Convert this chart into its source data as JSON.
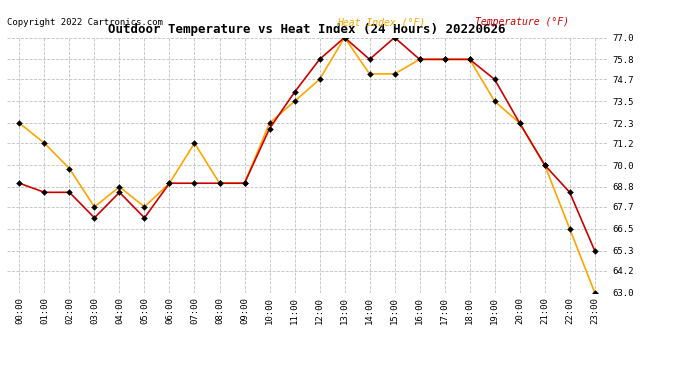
{
  "title": "Outdoor Temperature vs Heat Index (24 Hours) 20220626",
  "copyright": "Copyright 2022 Cartronics.com",
  "hours": [
    "00:00",
    "01:00",
    "02:00",
    "03:00",
    "04:00",
    "05:00",
    "06:00",
    "07:00",
    "08:00",
    "09:00",
    "10:00",
    "11:00",
    "12:00",
    "13:00",
    "14:00",
    "15:00",
    "16:00",
    "17:00",
    "18:00",
    "19:00",
    "20:00",
    "21:00",
    "22:00",
    "23:00"
  ],
  "heat_index": [
    72.3,
    71.2,
    69.8,
    67.7,
    68.8,
    67.7,
    69.0,
    71.2,
    69.0,
    69.0,
    72.3,
    73.5,
    74.7,
    77.0,
    75.0,
    75.0,
    75.8,
    75.8,
    75.8,
    73.5,
    72.3,
    70.0,
    66.5,
    63.0
  ],
  "temperature": [
    69.0,
    68.5,
    68.5,
    67.1,
    68.5,
    67.1,
    69.0,
    69.0,
    69.0,
    69.0,
    72.0,
    74.0,
    75.8,
    77.0,
    75.8,
    77.0,
    75.8,
    75.8,
    75.8,
    74.7,
    72.3,
    70.0,
    68.5,
    65.3
  ],
  "heat_index_color": "#FFA500",
  "temperature_color": "#CC0000",
  "ylim_min": 63.0,
  "ylim_max": 77.0,
  "yticks": [
    63.0,
    64.2,
    65.3,
    66.5,
    67.7,
    68.8,
    70.0,
    71.2,
    72.3,
    73.5,
    74.7,
    75.8,
    77.0
  ],
  "bg_color": "#ffffff",
  "grid_color": "#c0c0c0",
  "title_fontsize": 9,
  "copyright_fontsize": 6.5,
  "legend_fontsize": 7,
  "tick_fontsize": 6.5
}
